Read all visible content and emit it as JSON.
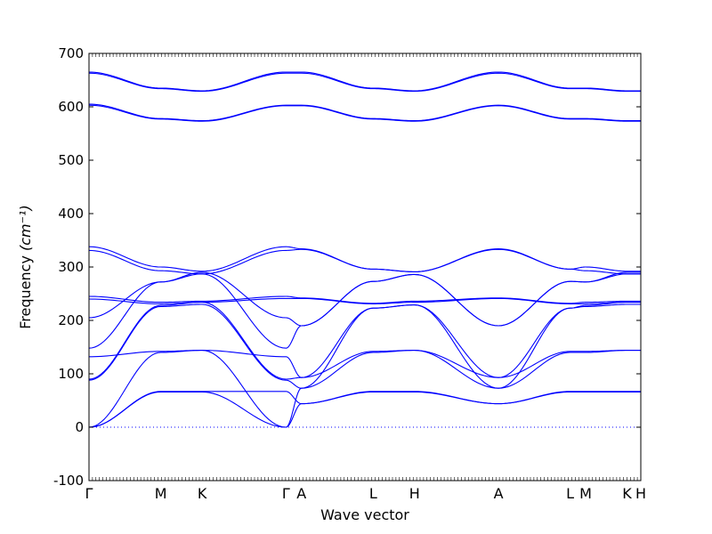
{
  "chart_data": {
    "type": "line",
    "xlabel": "Wave vector",
    "ylabel": "Frequency ",
    "ylabel_unit": "(cm⁻¹)",
    "ylim": [
      -100,
      700
    ],
    "yticks": [
      -100,
      0,
      100,
      200,
      300,
      400,
      500,
      600,
      700
    ],
    "xticks": [
      {
        "label": "Γ",
        "pos": 0.0
      },
      {
        "label": "M",
        "pos": 0.13
      },
      {
        "label": "K",
        "pos": 0.205
      },
      {
        "label": "Γ",
        "pos": 0.357
      },
      {
        "label": "A",
        "pos": 0.385
      },
      {
        "label": "L",
        "pos": 0.515
      },
      {
        "label": "H",
        "pos": 0.59
      },
      {
        "label": "A",
        "pos": 0.742
      },
      {
        "label": "L",
        "pos": 0.872
      },
      {
        "label": "M",
        "pos": 0.9
      },
      {
        "label": "K",
        "pos": 0.975
      },
      {
        "label": "H",
        "pos": 1.0
      }
    ],
    "zero_line": {
      "y": 0,
      "style": "dotted"
    },
    "line_color": "#0000ff",
    "grid": false,
    "series": [
      {
        "points": [
          [
            0,
            665
          ],
          [
            0.13,
            635
          ],
          [
            0.205,
            630
          ],
          [
            0.357,
            665
          ],
          [
            0.385,
            665
          ],
          [
            0.515,
            635
          ],
          [
            0.59,
            630
          ],
          [
            0.742,
            665
          ],
          [
            0.872,
            635
          ],
          [
            0.9,
            635
          ],
          [
            0.975,
            630
          ],
          [
            1.0,
            630
          ]
        ]
      },
      {
        "points": [
          [
            0,
            663
          ],
          [
            0.13,
            634
          ],
          [
            0.205,
            629
          ],
          [
            0.357,
            663
          ],
          [
            0.385,
            663
          ],
          [
            0.515,
            634
          ],
          [
            0.59,
            629
          ],
          [
            0.742,
            663
          ],
          [
            0.872,
            634
          ],
          [
            0.9,
            634
          ],
          [
            0.975,
            629
          ],
          [
            1.0,
            629
          ]
        ]
      },
      {
        "points": [
          [
            0,
            605
          ],
          [
            0.13,
            578
          ],
          [
            0.205,
            574
          ],
          [
            0.357,
            603
          ],
          [
            0.385,
            603
          ],
          [
            0.515,
            578
          ],
          [
            0.59,
            574
          ],
          [
            0.742,
            603
          ],
          [
            0.872,
            578
          ],
          [
            0.9,
            578
          ],
          [
            0.975,
            574
          ],
          [
            1.0,
            574
          ]
        ]
      },
      {
        "points": [
          [
            0,
            603
          ],
          [
            0.13,
            577
          ],
          [
            0.205,
            573
          ],
          [
            0.357,
            602
          ],
          [
            0.385,
            602
          ],
          [
            0.515,
            577
          ],
          [
            0.59,
            573
          ],
          [
            0.742,
            602
          ],
          [
            0.872,
            577
          ],
          [
            0.9,
            577
          ],
          [
            0.975,
            573
          ],
          [
            1.0,
            573
          ]
        ]
      },
      {
        "points": [
          [
            0,
            338
          ],
          [
            0.13,
            300
          ],
          [
            0.205,
            292
          ],
          [
            0.357,
            338
          ],
          [
            0.385,
            334
          ],
          [
            0.515,
            296
          ],
          [
            0.59,
            291
          ],
          [
            0.742,
            334
          ],
          [
            0.872,
            296
          ],
          [
            0.9,
            300
          ],
          [
            0.975,
            292
          ],
          [
            1.0,
            292
          ]
        ]
      },
      {
        "points": [
          [
            0,
            331
          ],
          [
            0.13,
            293
          ],
          [
            0.205,
            287
          ],
          [
            0.357,
            331
          ],
          [
            0.385,
            333
          ],
          [
            0.515,
            296
          ],
          [
            0.59,
            291
          ],
          [
            0.742,
            333
          ],
          [
            0.872,
            296
          ],
          [
            0.9,
            293
          ],
          [
            0.975,
            287
          ],
          [
            1.0,
            287
          ]
        ]
      },
      {
        "points": [
          [
            0,
            245
          ],
          [
            0.13,
            234
          ],
          [
            0.205,
            236
          ],
          [
            0.357,
            245
          ],
          [
            0.385,
            242
          ],
          [
            0.515,
            232
          ],
          [
            0.59,
            236
          ],
          [
            0.742,
            242
          ],
          [
            0.872,
            232
          ],
          [
            0.9,
            234
          ],
          [
            0.975,
            236
          ],
          [
            1.0,
            236
          ]
        ]
      },
      {
        "points": [
          [
            0,
            240
          ],
          [
            0.13,
            231
          ],
          [
            0.205,
            234
          ],
          [
            0.357,
            241
          ],
          [
            0.385,
            241
          ],
          [
            0.515,
            231
          ],
          [
            0.59,
            234
          ],
          [
            0.742,
            241
          ],
          [
            0.872,
            231
          ],
          [
            0.9,
            231
          ],
          [
            0.975,
            234
          ],
          [
            1.0,
            234
          ]
        ]
      },
      {
        "points": [
          [
            0,
            205
          ],
          [
            0.13,
            272
          ],
          [
            0.205,
            290
          ],
          [
            0.357,
            205
          ],
          [
            0.385,
            190
          ],
          [
            0.515,
            273
          ],
          [
            0.59,
            286
          ],
          [
            0.742,
            190
          ],
          [
            0.872,
            273
          ],
          [
            0.9,
            272
          ],
          [
            0.975,
            290
          ],
          [
            1.0,
            290
          ]
        ]
      },
      {
        "points": [
          [
            0,
            148
          ],
          [
            0.13,
            272
          ],
          [
            0.205,
            287
          ],
          [
            0.357,
            148
          ],
          [
            0.385,
            190
          ],
          [
            0.515,
            273
          ],
          [
            0.59,
            286
          ],
          [
            0.742,
            190
          ],
          [
            0.872,
            273
          ],
          [
            0.9,
            272
          ],
          [
            0.975,
            287
          ],
          [
            1.0,
            287
          ]
        ]
      },
      {
        "points": [
          [
            0,
            132
          ],
          [
            0.13,
            142
          ],
          [
            0.205,
            144
          ],
          [
            0.357,
            132
          ],
          [
            0.385,
            93
          ],
          [
            0.515,
            142
          ],
          [
            0.59,
            144
          ],
          [
            0.742,
            93
          ],
          [
            0.872,
            142
          ],
          [
            0.9,
            142
          ],
          [
            0.975,
            144
          ],
          [
            1.0,
            144
          ]
        ]
      },
      {
        "points": [
          [
            0,
            90
          ],
          [
            0.13,
            228
          ],
          [
            0.205,
            234
          ],
          [
            0.357,
            90
          ],
          [
            0.385,
            93
          ],
          [
            0.515,
            223
          ],
          [
            0.59,
            229
          ],
          [
            0.742,
            93
          ],
          [
            0.872,
            223
          ],
          [
            0.9,
            228
          ],
          [
            0.975,
            234
          ],
          [
            1.0,
            234
          ]
        ]
      },
      {
        "points": [
          [
            0,
            88
          ],
          [
            0.13,
            226
          ],
          [
            0.205,
            230
          ],
          [
            0.357,
            88
          ],
          [
            0.385,
            73
          ],
          [
            0.515,
            223
          ],
          [
            0.59,
            229
          ],
          [
            0.742,
            73
          ],
          [
            0.872,
            223
          ],
          [
            0.9,
            226
          ],
          [
            0.975,
            230
          ],
          [
            1.0,
            230
          ]
        ]
      },
      {
        "points": [
          [
            0,
            0
          ],
          [
            0.13,
            140
          ],
          [
            0.205,
            144
          ],
          [
            0.357,
            0
          ],
          [
            0.385,
            73
          ],
          [
            0.515,
            140
          ],
          [
            0.59,
            144
          ],
          [
            0.742,
            73
          ],
          [
            0.872,
            140
          ],
          [
            0.9,
            140
          ],
          [
            0.975,
            144
          ],
          [
            1.0,
            144
          ]
        ]
      },
      {
        "points": [
          [
            0,
            0
          ],
          [
            0.13,
            66
          ],
          [
            0.205,
            66
          ],
          [
            0.357,
            0
          ],
          [
            0.385,
            44
          ],
          [
            0.515,
            66
          ],
          [
            0.59,
            66
          ],
          [
            0.742,
            44
          ],
          [
            0.872,
            66
          ],
          [
            0.9,
            66
          ],
          [
            0.975,
            66
          ],
          [
            1.0,
            66
          ]
        ]
      },
      {
        "points": [
          [
            0,
            0
          ],
          [
            0.13,
            67
          ],
          [
            0.205,
            67
          ],
          [
            0.357,
            67
          ],
          [
            0.385,
            44
          ],
          [
            0.515,
            67
          ],
          [
            0.59,
            67
          ],
          [
            0.742,
            44
          ],
          [
            0.872,
            67
          ],
          [
            0.9,
            67
          ],
          [
            0.975,
            67
          ],
          [
            1.0,
            67
          ]
        ]
      }
    ]
  }
}
